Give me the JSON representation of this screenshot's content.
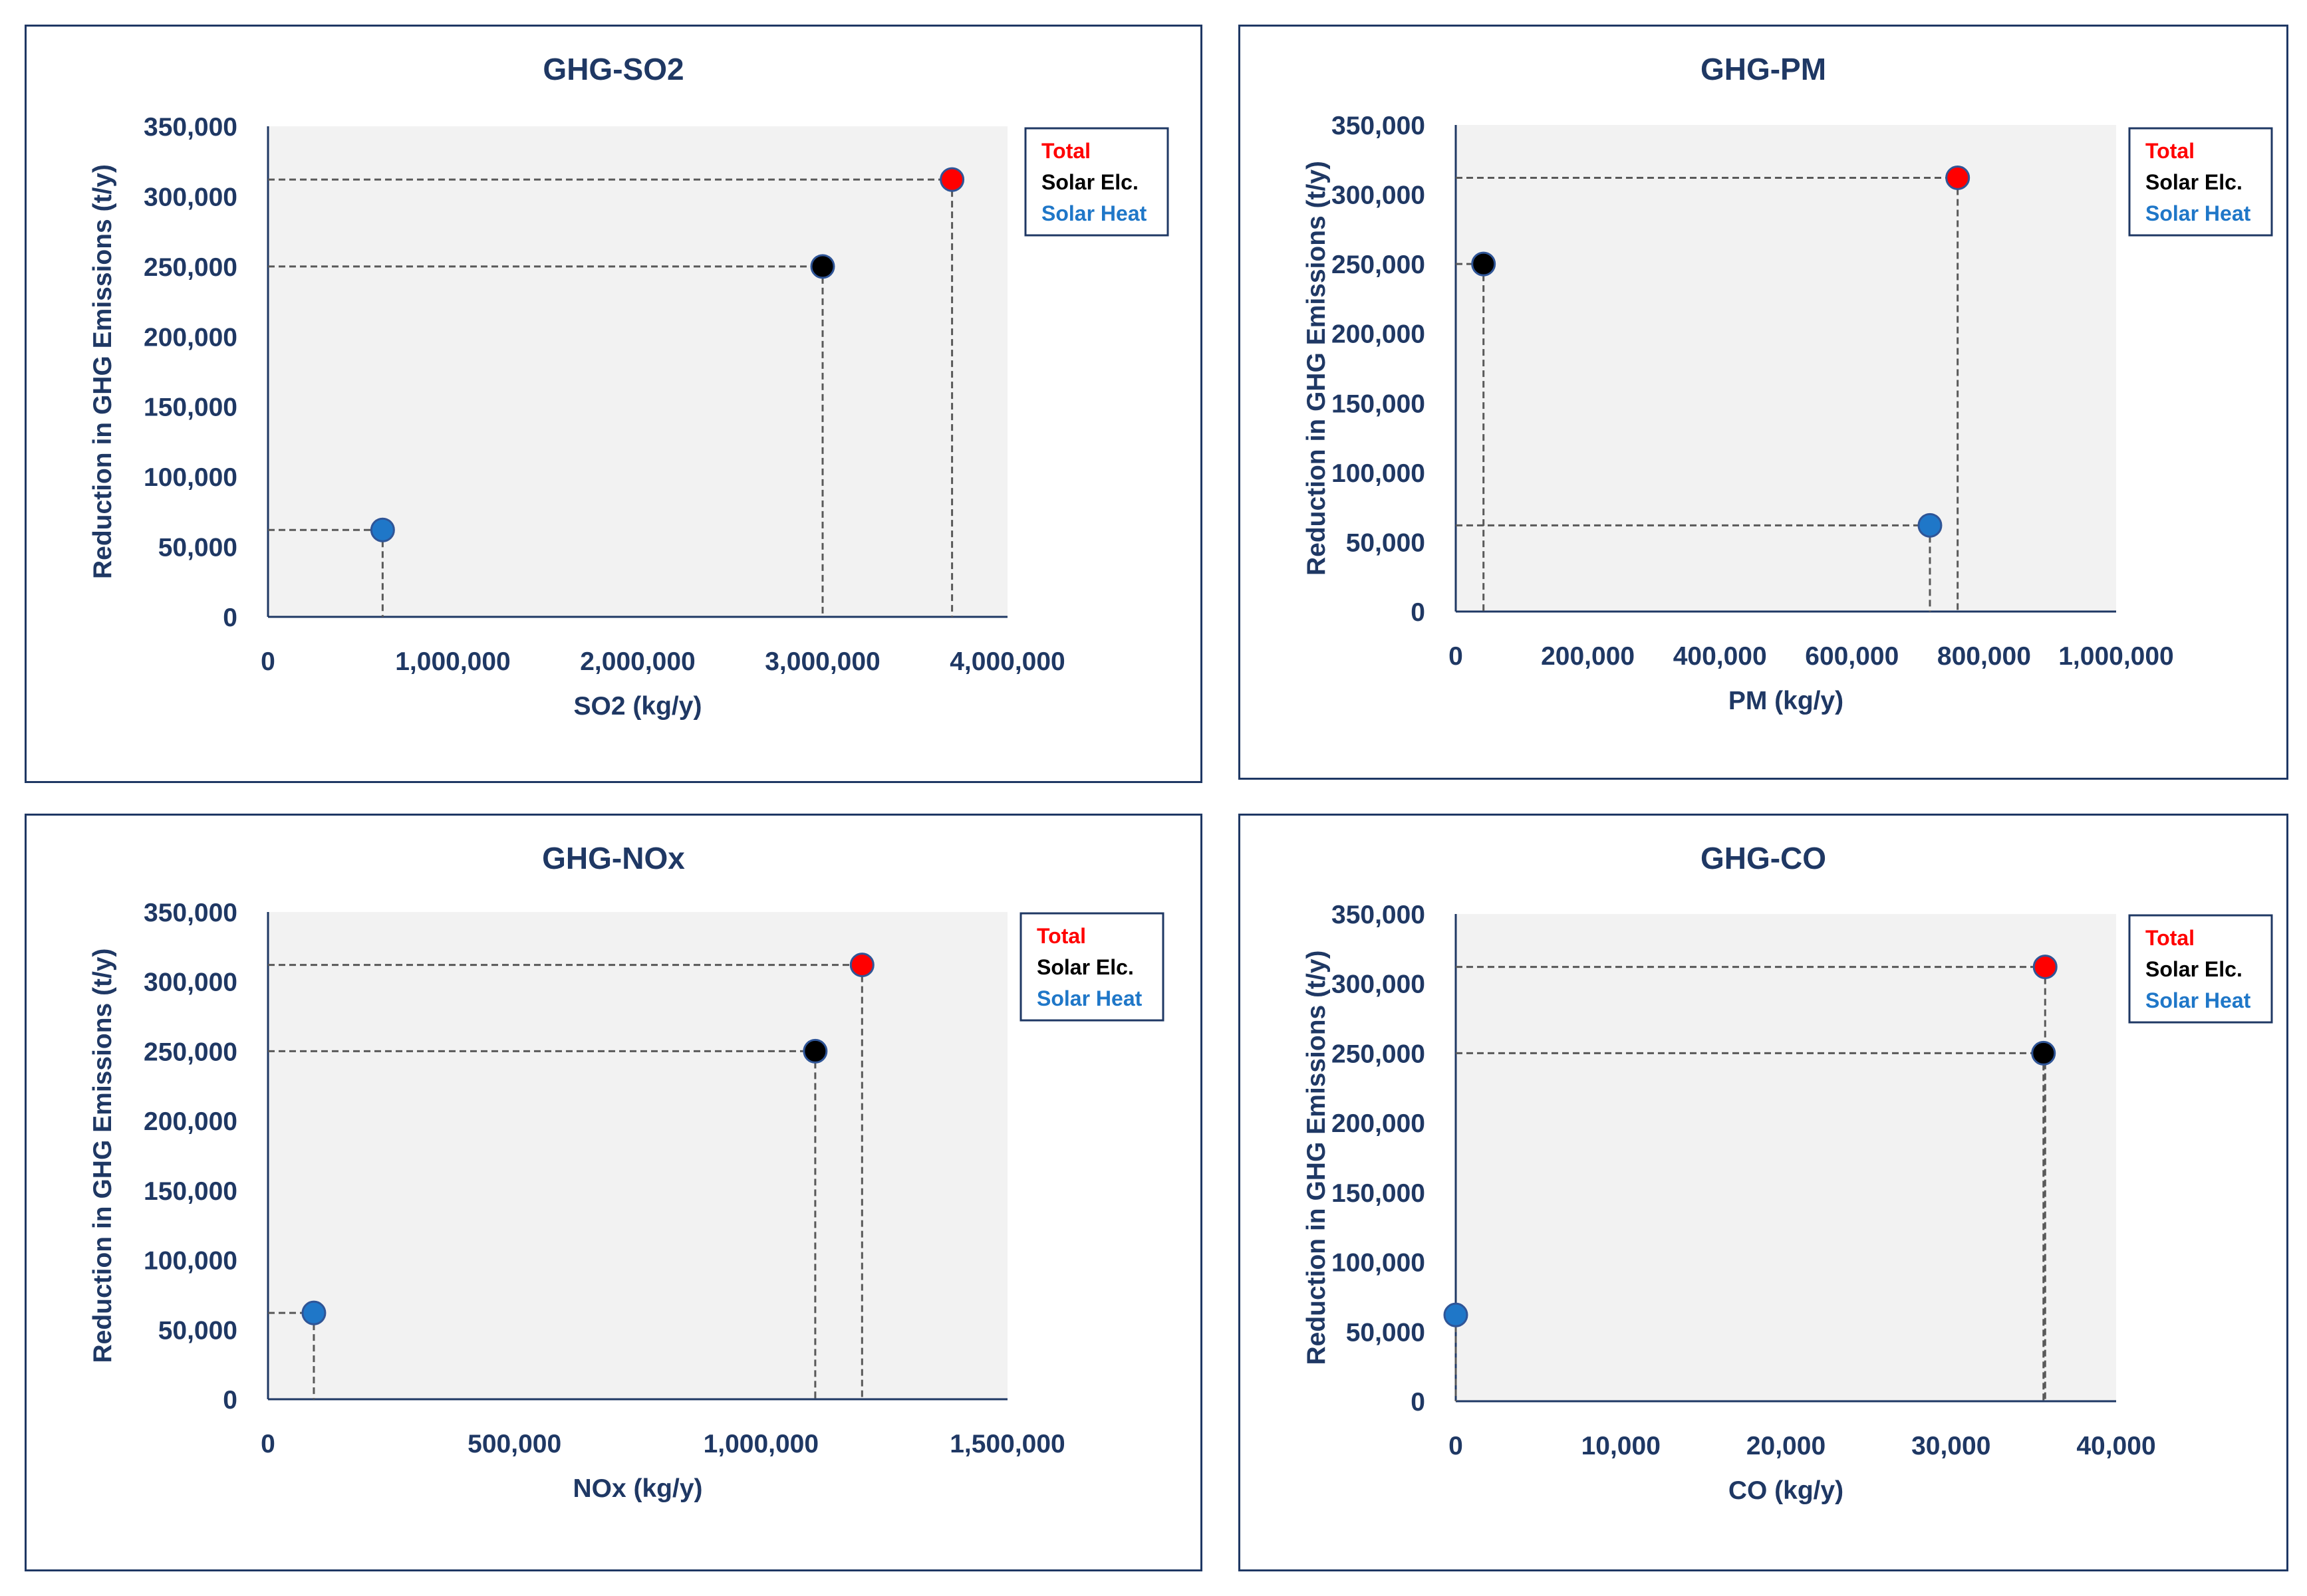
{
  "chart_data": [
    {
      "type": "scatter",
      "title": "GHG-SO2",
      "xlabel": "SO2 (kg/y)",
      "ylabel": "Reduction in GHG Emissions (t/y)",
      "xlim": [
        0,
        4000000
      ],
      "ylim": [
        0,
        350000
      ],
      "xticks": [
        0,
        1000000,
        2000000,
        3000000,
        4000000
      ],
      "xtick_labels": [
        "0",
        "1,000,000",
        "2,000,000",
        "3,000,000",
        "4,000,000"
      ],
      "yticks": [
        0,
        50000,
        100000,
        150000,
        200000,
        250000,
        300000,
        350000
      ],
      "ytick_labels": [
        "0",
        "50,000",
        "100,000",
        "150,000",
        "200,000",
        "250,000",
        "300,000",
        "350,000"
      ],
      "legend": [
        "Total",
        "Solar Elc.",
        "Solar Heat"
      ],
      "series": [
        {
          "name": "Total",
          "color": "#ff0000",
          "x": 3700000,
          "y": 312000
        },
        {
          "name": "Solar Elc.",
          "color": "#000000",
          "x": 3000000,
          "y": 250000
        },
        {
          "name": "Solar Heat",
          "color": "#1f77c8",
          "x": 620000,
          "y": 62000
        }
      ]
    },
    {
      "type": "scatter",
      "title": "GHG-PM",
      "xlabel": "PM (kg/y)",
      "ylabel": "Reduction in GHG Emissions (t/y)",
      "xlim": [
        0,
        1000000
      ],
      "ylim": [
        0,
        350000
      ],
      "xticks": [
        0,
        200000,
        400000,
        600000,
        800000,
        1000000
      ],
      "xtick_labels": [
        "0",
        "200,000",
        "400,000",
        "600,000",
        "800,000",
        "1,000,000"
      ],
      "yticks": [
        0,
        50000,
        100000,
        150000,
        200000,
        250000,
        300000,
        350000
      ],
      "ytick_labels": [
        "0",
        "50,000",
        "100,000",
        "150,000",
        "200,000",
        "250,000",
        "300,000",
        "350,000"
      ],
      "legend": [
        "Total",
        "Solar Elc.",
        "Solar Heat"
      ],
      "series": [
        {
          "name": "Total",
          "color": "#ff0000",
          "x": 760000,
          "y": 312000
        },
        {
          "name": "Solar Elc.",
          "color": "#000000",
          "x": 42000,
          "y": 250000
        },
        {
          "name": "Solar Heat",
          "color": "#1f77c8",
          "x": 718000,
          "y": 62000
        }
      ]
    },
    {
      "type": "scatter",
      "title": "GHG-NOx",
      "xlabel": "NOx (kg/y)",
      "ylabel": "Reduction in GHG Emissions (t/y)",
      "xlim": [
        0,
        1500000
      ],
      "ylim": [
        0,
        350000
      ],
      "xticks": [
        0,
        500000,
        1000000,
        1500000
      ],
      "xtick_labels": [
        "0",
        "500,000",
        "1,000,000",
        "1,500,000"
      ],
      "yticks": [
        0,
        50000,
        100000,
        150000,
        200000,
        250000,
        300000,
        350000
      ],
      "ytick_labels": [
        "0",
        "50,000",
        "100,000",
        "150,000",
        "200,000",
        "250,000",
        "300,000",
        "350,000"
      ],
      "legend": [
        "Total",
        "Solar Elc.",
        "Solar Heat"
      ],
      "series": [
        {
          "name": "Total",
          "color": "#ff0000",
          "x": 1205000,
          "y": 312000
        },
        {
          "name": "Solar Elc.",
          "color": "#000000",
          "x": 1110000,
          "y": 250000
        },
        {
          "name": "Solar Heat",
          "color": "#1f77c8",
          "x": 93000,
          "y": 62000
        }
      ]
    },
    {
      "type": "scatter",
      "title": "GHG-CO",
      "xlabel": "CO (kg/y)",
      "ylabel": "Reduction in GHG Emissions (t/y)",
      "xlim": [
        0,
        40000
      ],
      "ylim": [
        0,
        350000
      ],
      "xticks": [
        0,
        10000,
        20000,
        30000,
        40000
      ],
      "xtick_labels": [
        "0",
        "10,000",
        "20,000",
        "30,000",
        "40,000"
      ],
      "yticks": [
        0,
        50000,
        100000,
        150000,
        200000,
        250000,
        300000,
        350000
      ],
      "ytick_labels": [
        "0",
        "50,000",
        "100,000",
        "150,000",
        "200,000",
        "250,000",
        "300,000",
        "350,000"
      ],
      "legend": [
        "Total",
        "Solar Elc.",
        "Solar Heat"
      ],
      "series": [
        {
          "name": "Total",
          "color": "#ff0000",
          "x": 35700,
          "y": 312000
        },
        {
          "name": "Solar Elc.",
          "color": "#000000",
          "x": 35600,
          "y": 250000
        },
        {
          "name": "Solar Heat",
          "color": "#1f77c8",
          "x": 0,
          "y": 62000
        }
      ]
    }
  ],
  "colors": {
    "frame": "#1f3864",
    "plot_bg": "#f2f2f2",
    "guide": "#595959"
  }
}
